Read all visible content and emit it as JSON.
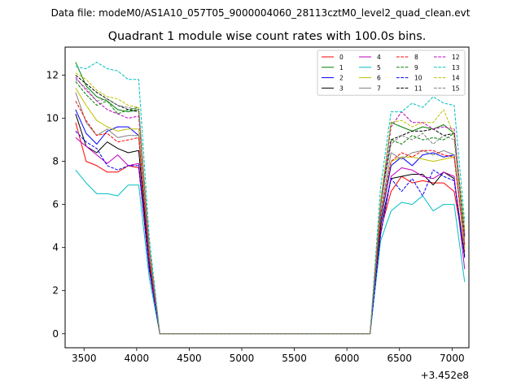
{
  "chart_data": {
    "type": "line",
    "suptitle": "Data file: modeM0/AS1A10_057T05_9000004060_28113cztM0_level2_quad_clean.evt",
    "title": "Quadrant 1 module wise count rates with 100.0s bins.",
    "xlabel": "",
    "ylabel": "",
    "x_offset_label": "+3.452e8",
    "xlim": [
      3320,
      7160
    ],
    "ylim": [
      -0.65,
      13.3
    ],
    "xticks": [
      3500,
      4000,
      4500,
      5000,
      5500,
      6000,
      6500,
      7000
    ],
    "yticks": [
      0,
      2,
      4,
      6,
      8,
      10,
      12
    ],
    "x": [
      3420,
      3520,
      3620,
      3720,
      3820,
      3920,
      4020,
      4120,
      4220,
      4320,
      4420,
      4520,
      4620,
      4720,
      4820,
      4920,
      5020,
      5120,
      5220,
      5320,
      5420,
      5520,
      5620,
      5720,
      5820,
      5920,
      6020,
      6120,
      6220,
      6320,
      6420,
      6520,
      6620,
      6720,
      6820,
      6920,
      7020,
      7120
    ],
    "legend": {
      "location": "upper right",
      "columns": 4
    },
    "series": [
      {
        "name": "0",
        "color": "#ff0000",
        "dash": "solid",
        "values": [
          9.8,
          8.0,
          7.8,
          7.5,
          7.5,
          7.8,
          7.7,
          3.0,
          0,
          0,
          0,
          0,
          0,
          0,
          0,
          0,
          0,
          0,
          0,
          0,
          0,
          0,
          0,
          0,
          0,
          0,
          0,
          0,
          0,
          4.8,
          6.6,
          7.3,
          7.0,
          7.1,
          7.0,
          7.0,
          6.6,
          3.8
        ]
      },
      {
        "name": "1",
        "color": "#008000",
        "dash": "solid",
        "values": [
          12.6,
          11.5,
          11.0,
          10.8,
          10.4,
          10.3,
          10.4,
          4.0,
          0,
          0,
          0,
          0,
          0,
          0,
          0,
          0,
          0,
          0,
          0,
          0,
          0,
          0,
          0,
          0,
          0,
          0,
          0,
          0,
          0,
          6.0,
          9.8,
          9.6,
          9.4,
          9.6,
          9.5,
          9.7,
          9.3,
          4.8
        ]
      },
      {
        "name": "2",
        "color": "#0000ff",
        "dash": "solid",
        "values": [
          10.4,
          9.3,
          8.8,
          9.4,
          9.6,
          9.6,
          9.2,
          3.4,
          0,
          0,
          0,
          0,
          0,
          0,
          0,
          0,
          0,
          0,
          0,
          0,
          0,
          0,
          0,
          0,
          0,
          0,
          0,
          0,
          0,
          5.2,
          7.8,
          8.2,
          7.8,
          8.3,
          8.4,
          8.2,
          8.3,
          4.0
        ]
      },
      {
        "name": "3",
        "color": "#000000",
        "dash": "solid",
        "values": [
          10.2,
          8.7,
          8.4,
          8.9,
          8.6,
          8.4,
          8.5,
          3.2,
          0,
          0,
          0,
          0,
          0,
          0,
          0,
          0,
          0,
          0,
          0,
          0,
          0,
          0,
          0,
          0,
          0,
          0,
          0,
          0,
          0,
          5.0,
          7.2,
          7.3,
          7.4,
          7.4,
          6.9,
          7.5,
          7.2,
          3.6
        ]
      },
      {
        "name": "4",
        "color": "#bf00bf",
        "dash": "solid",
        "values": [
          9.1,
          8.7,
          8.3,
          7.9,
          8.3,
          7.8,
          7.9,
          3.0,
          0,
          0,
          0,
          0,
          0,
          0,
          0,
          0,
          0,
          0,
          0,
          0,
          0,
          0,
          0,
          0,
          0,
          0,
          0,
          0,
          0,
          4.6,
          7.3,
          7.7,
          7.6,
          7.3,
          7.2,
          7.5,
          7.3,
          3.0
        ]
      },
      {
        "name": "5",
        "color": "#00bfbf",
        "dash": "solid",
        "values": [
          7.6,
          7.0,
          6.5,
          6.5,
          6.4,
          6.9,
          6.9,
          2.6,
          0,
          0,
          0,
          0,
          0,
          0,
          0,
          0,
          0,
          0,
          0,
          0,
          0,
          0,
          0,
          0,
          0,
          0,
          0,
          0,
          0,
          4.3,
          5.7,
          6.1,
          6.0,
          6.4,
          5.7,
          6.0,
          6.0,
          2.4
        ]
      },
      {
        "name": "6",
        "color": "#bfbf00",
        "dash": "solid",
        "values": [
          11.4,
          10.6,
          9.9,
          9.6,
          9.4,
          9.5,
          9.5,
          3.6,
          0,
          0,
          0,
          0,
          0,
          0,
          0,
          0,
          0,
          0,
          0,
          0,
          0,
          0,
          0,
          0,
          0,
          0,
          0,
          0,
          0,
          5.4,
          8.0,
          8.2,
          8.2,
          8.1,
          8.0,
          8.1,
          8.2,
          4.0
        ]
      },
      {
        "name": "7",
        "color": "#808080",
        "dash": "solid",
        "values": [
          11.2,
          9.8,
          9.2,
          9.5,
          9.1,
          9.2,
          9.2,
          3.5,
          0,
          0,
          0,
          0,
          0,
          0,
          0,
          0,
          0,
          0,
          0,
          0,
          0,
          0,
          0,
          0,
          0,
          0,
          0,
          0,
          0,
          5.6,
          8.4,
          8.1,
          8.4,
          8.5,
          8.3,
          8.5,
          8.3,
          4.2
        ]
      },
      {
        "name": "8",
        "color": "#ff0000",
        "dash": "dashed",
        "values": [
          10.8,
          9.9,
          9.2,
          9.3,
          8.9,
          9.0,
          9.1,
          3.5,
          0,
          0,
          0,
          0,
          0,
          0,
          0,
          0,
          0,
          0,
          0,
          0,
          0,
          0,
          0,
          0,
          0,
          0,
          0,
          0,
          0,
          5.5,
          8.0,
          8.4,
          8.2,
          8.5,
          8.5,
          8.3,
          8.2,
          4.1
        ]
      },
      {
        "name": "9",
        "color": "#008000",
        "dash": "dashed",
        "values": [
          11.7,
          11.1,
          10.6,
          10.8,
          10.2,
          10.4,
          10.5,
          4.0,
          0,
          0,
          0,
          0,
          0,
          0,
          0,
          0,
          0,
          0,
          0,
          0,
          0,
          0,
          0,
          0,
          0,
          0,
          0,
          0,
          0,
          5.9,
          9.0,
          8.8,
          9.2,
          9.0,
          9.1,
          9.0,
          9.3,
          4.6
        ]
      },
      {
        "name": "10",
        "color": "#0000ff",
        "dash": "dashed",
        "values": [
          9.4,
          8.9,
          8.6,
          7.8,
          7.6,
          7.8,
          7.8,
          3.0,
          0,
          0,
          0,
          0,
          0,
          0,
          0,
          0,
          0,
          0,
          0,
          0,
          0,
          0,
          0,
          0,
          0,
          0,
          0,
          0,
          0,
          4.6,
          7.2,
          6.6,
          7.2,
          6.4,
          7.6,
          7.3,
          7.1,
          3.5
        ]
      },
      {
        "name": "11",
        "color": "#000000",
        "dash": "dashed",
        "values": [
          12.0,
          11.6,
          11.2,
          10.9,
          10.6,
          10.4,
          10.3,
          4.0,
          0,
          0,
          0,
          0,
          0,
          0,
          0,
          0,
          0,
          0,
          0,
          0,
          0,
          0,
          0,
          0,
          0,
          0,
          0,
          0,
          0,
          6.1,
          9.0,
          9.2,
          9.4,
          9.4,
          9.5,
          9.2,
          9.3,
          4.5
        ]
      },
      {
        "name": "12",
        "color": "#bf00bf",
        "dash": "dashed",
        "values": [
          11.9,
          11.3,
          10.8,
          10.4,
          10.2,
          10.0,
          10.1,
          3.9,
          0,
          0,
          0,
          0,
          0,
          0,
          0,
          0,
          0,
          0,
          0,
          0,
          0,
          0,
          0,
          0,
          0,
          0,
          0,
          0,
          0,
          6.0,
          9.6,
          10.3,
          9.8,
          9.8,
          9.5,
          9.6,
          9.5,
          4.6
        ]
      },
      {
        "name": "13",
        "color": "#00bfbf",
        "dash": "dashed",
        "values": [
          12.4,
          12.3,
          12.6,
          12.3,
          12.2,
          11.8,
          11.8,
          4.5,
          0,
          0,
          0,
          0,
          0,
          0,
          0,
          0,
          0,
          0,
          0,
          0,
          0,
          0,
          0,
          0,
          0,
          0,
          0,
          0,
          0,
          6.8,
          10.3,
          10.3,
          10.7,
          10.5,
          11.0,
          10.7,
          10.6,
          5.2
        ]
      },
      {
        "name": "14",
        "color": "#bfbf00",
        "dash": "dashed",
        "values": [
          12.1,
          11.8,
          11.3,
          11.0,
          10.9,
          10.6,
          10.5,
          4.0,
          0,
          0,
          0,
          0,
          0,
          0,
          0,
          0,
          0,
          0,
          0,
          0,
          0,
          0,
          0,
          0,
          0,
          0,
          0,
          0,
          0,
          6.2,
          9.8,
          9.9,
          9.6,
          9.8,
          9.8,
          10.4,
          9.2,
          4.8
        ]
      },
      {
        "name": "15",
        "color": "#808080",
        "dash": "dashed",
        "values": [
          11.8,
          11.4,
          10.8,
          10.9,
          10.6,
          10.5,
          10.4,
          4.0,
          0,
          0,
          0,
          0,
          0,
          0,
          0,
          0,
          0,
          0,
          0,
          0,
          0,
          0,
          0,
          0,
          0,
          0,
          0,
          0,
          0,
          6.0,
          8.8,
          9.2,
          9.0,
          9.3,
          8.8,
          9.2,
          9.0,
          4.4
        ]
      }
    ]
  }
}
